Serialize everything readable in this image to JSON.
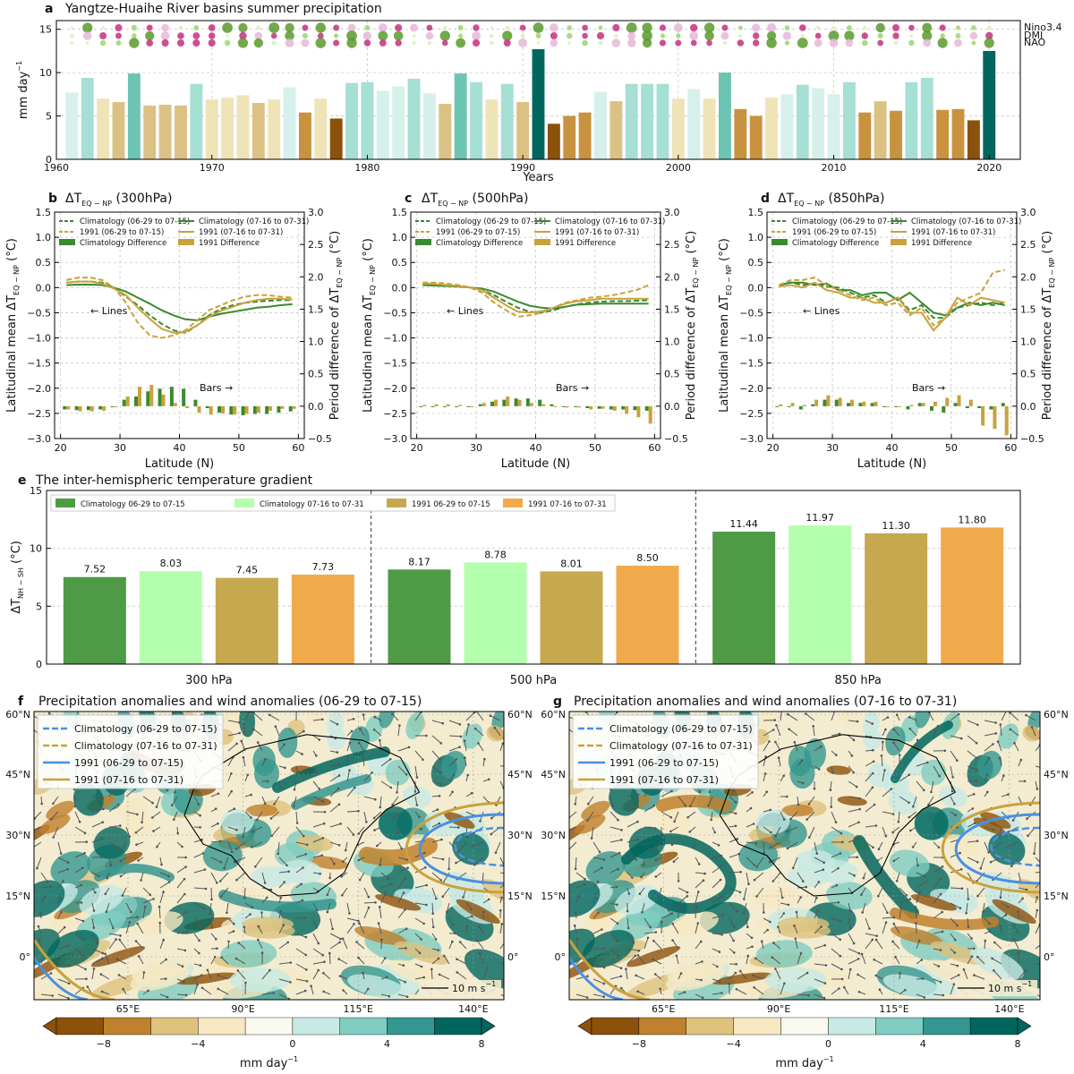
{
  "chart_data": [
    {
      "id": "a",
      "panel_label": "a",
      "type": "bar",
      "title": "Yangtze-Huaihe River basins summer precipitation",
      "xlabel": "Years",
      "ylabel": "mm day",
      "ylabel_sup": "−1",
      "xticks": [
        "1960",
        "1970",
        "1980",
        "1990",
        "2000",
        "2010",
        "2020"
      ],
      "yticks": [
        "0",
        "5",
        "10",
        "15"
      ],
      "xlim": [
        1960,
        2022
      ],
      "ylim": [
        0,
        16
      ],
      "years": [
        1961,
        1962,
        1963,
        1964,
        1965,
        1966,
        1967,
        1968,
        1969,
        1970,
        1971,
        1972,
        1973,
        1974,
        1975,
        1976,
        1977,
        1978,
        1979,
        1980,
        1981,
        1982,
        1983,
        1984,
        1985,
        1986,
        1987,
        1988,
        1989,
        1990,
        1991,
        1992,
        1993,
        1994,
        1995,
        1996,
        1997,
        1998,
        1999,
        2000,
        2001,
        2002,
        2003,
        2004,
        2005,
        2006,
        2007,
        2008,
        2009,
        2010,
        2011,
        2012,
        2013,
        2014,
        2015,
        2016,
        2017,
        2018,
        2019,
        2020
      ],
      "values": [
        7.7,
        9.4,
        7.0,
        6.6,
        9.9,
        6.2,
        6.3,
        6.2,
        8.7,
        6.9,
        7.1,
        7.4,
        6.5,
        6.9,
        8.3,
        5.4,
        7.0,
        4.7,
        8.8,
        8.9,
        7.9,
        8.4,
        9.3,
        7.6,
        6.4,
        9.9,
        8.9,
        6.9,
        8.7,
        6.6,
        12.7,
        4.1,
        5.0,
        5.4,
        7.8,
        6.7,
        8.7,
        8.7,
        8.7,
        7.0,
        8.1,
        7.0,
        10.0,
        5.8,
        5.0,
        7.1,
        7.5,
        8.6,
        8.2,
        7.5,
        8.9,
        5.4,
        6.7,
        5.6,
        8.9,
        9.4,
        5.7,
        5.8,
        4.5,
        12.5
      ],
      "index_rows": [
        "Nino3.4",
        "DMI",
        "NAO"
      ]
    },
    {
      "id": "b",
      "panel_label": "b",
      "type": "line",
      "title": "ΔT",
      "title_sub": "EQ − NP",
      "title_suffix": " (300hPa)",
      "xlabel": "Latitude (N)",
      "ylabel_left": "Latitudinal mean ΔT",
      "ylabel_left_sub": "EQ − NP",
      "ylabel_left_unit": " (°C)",
      "ylabel_right": "Period difference of ΔT",
      "ylabel_right_sub": "EQ − NP",
      "ylabel_right_unit": " (°C)",
      "xticks": [
        "20",
        "30",
        "40",
        "50",
        "60"
      ],
      "yticks_left": [
        "−3.0",
        "−2.5",
        "−2.0",
        "−1.5",
        "−1.0",
        "−0.5",
        "0.0",
        "0.5",
        "1.0",
        "1.5"
      ],
      "yticks_right": [
        "−0.5",
        "0.0",
        "0.5",
        "1.0",
        "1.5",
        "2.0",
        "2.5",
        "3.0"
      ],
      "xlim": [
        19,
        61
      ],
      "ylim_left": [
        -3.0,
        1.5
      ],
      "ylim_right": [
        -0.5,
        3.0
      ],
      "annotations": [
        "← Lines",
        "Bars →"
      ],
      "latitudes": [
        21,
        23,
        25,
        27,
        29,
        31,
        33,
        35,
        37,
        39,
        41,
        43,
        45,
        47,
        49,
        51,
        53,
        55,
        57,
        59
      ],
      "series": [
        {
          "name": "Climatology (06-29 to 07-15)",
          "style": "dashed",
          "color": "#3a8a2e",
          "values": [
            0.1,
            0.12,
            0.12,
            0.1,
            0.0,
            -0.18,
            -0.35,
            -0.55,
            -0.72,
            -0.85,
            -0.9,
            -0.75,
            -0.55,
            -0.42,
            -0.35,
            -0.3,
            -0.28,
            -0.26,
            -0.25,
            -0.25
          ]
        },
        {
          "name": "Climatology (07-16 to 07-31)",
          "style": "solid",
          "color": "#3a8a2e",
          "values": [
            0.05,
            0.06,
            0.06,
            0.05,
            0.0,
            -0.08,
            -0.2,
            -0.32,
            -0.45,
            -0.55,
            -0.63,
            -0.65,
            -0.58,
            -0.52,
            -0.48,
            -0.44,
            -0.4,
            -0.38,
            -0.35,
            -0.33
          ]
        },
        {
          "name": "1991 (06-29 to 07-15)",
          "style": "dashed",
          "color": "#c9a23c",
          "values": [
            0.15,
            0.2,
            0.2,
            0.15,
            0.0,
            -0.3,
            -0.7,
            -0.95,
            -1.0,
            -0.95,
            -0.85,
            -0.65,
            -0.45,
            -0.35,
            -0.25,
            -0.18,
            -0.15,
            -0.15,
            -0.18,
            -0.2
          ]
        },
        {
          "name": "1991 (07-16 to 07-31)",
          "style": "solid",
          "color": "#c9a23c",
          "values": [
            0.1,
            0.12,
            0.12,
            0.08,
            -0.02,
            -0.15,
            -0.4,
            -0.62,
            -0.82,
            -0.9,
            -0.88,
            -0.75,
            -0.58,
            -0.46,
            -0.38,
            -0.3,
            -0.25,
            -0.22,
            -0.22,
            -0.24
          ]
        }
      ],
      "bars": [
        {
          "name": "Climatology Difference",
          "color": "#3a8a2e",
          "values": [
            -0.05,
            -0.06,
            -0.06,
            -0.05,
            0.0,
            0.1,
            0.15,
            0.23,
            0.27,
            0.3,
            0.27,
            0.1,
            -0.03,
            -0.1,
            -0.13,
            -0.14,
            -0.12,
            -0.12,
            -0.1,
            -0.08
          ]
        },
        {
          "name": "1991 Difference",
          "color": "#c9a23c",
          "values": [
            -0.05,
            -0.08,
            -0.08,
            -0.07,
            0.0,
            0.15,
            0.3,
            0.33,
            0.18,
            0.05,
            -0.03,
            -0.1,
            -0.13,
            -0.11,
            -0.13,
            -0.12,
            -0.1,
            -0.07,
            -0.04,
            -0.04
          ]
        }
      ]
    },
    {
      "id": "c",
      "panel_label": "c",
      "type": "line",
      "title": "ΔT",
      "title_sub": "EQ − NP",
      "title_suffix": " (500hPa)",
      "xlabel": "Latitude (N)",
      "ylabel_left": "Latitudinal mean ΔT",
      "ylabel_left_sub": "EQ − NP",
      "ylabel_left_unit": " (°C)",
      "ylabel_right": "Period difference of ΔT",
      "ylabel_right_sub": "EQ − NP",
      "ylabel_right_unit": " (°C)",
      "xticks": [
        "20",
        "30",
        "40",
        "50",
        "60"
      ],
      "yticks_left": [
        "−3.0",
        "−2.5",
        "−2.0",
        "−1.5",
        "−1.0",
        "−0.5",
        "0.0",
        "0.5",
        "1.0",
        "1.5"
      ],
      "yticks_right": [
        "−0.5",
        "0.0",
        "0.5",
        "1.0",
        "1.5",
        "2.0",
        "2.5",
        "3.0"
      ],
      "xlim": [
        19,
        61
      ],
      "ylim_left": [
        -3.0,
        1.5
      ],
      "ylim_right": [
        -0.5,
        3.0
      ],
      "annotations": [
        "← Lines",
        "Bars →"
      ],
      "latitudes": [
        21,
        23,
        25,
        27,
        29,
        31,
        33,
        35,
        37,
        39,
        41,
        43,
        45,
        47,
        49,
        51,
        53,
        55,
        57,
        59
      ],
      "series": [
        {
          "name": "Climatology (06-29 to 07-15)",
          "style": "dashed",
          "color": "#3a8a2e",
          "values": [
            0.05,
            0.05,
            0.04,
            0.03,
            0.0,
            -0.05,
            -0.15,
            -0.28,
            -0.4,
            -0.48,
            -0.5,
            -0.45,
            -0.38,
            -0.33,
            -0.3,
            -0.28,
            -0.27,
            -0.27,
            -0.26,
            -0.25
          ]
        },
        {
          "name": "Climatology (07-16 to 07-31)",
          "style": "solid",
          "color": "#3a8a2e",
          "values": [
            0.05,
            0.04,
            0.03,
            0.02,
            0.0,
            -0.02,
            -0.08,
            -0.18,
            -0.28,
            -0.36,
            -0.4,
            -0.42,
            -0.38,
            -0.34,
            -0.33,
            -0.32,
            -0.32,
            -0.32,
            -0.32,
            -0.32
          ]
        },
        {
          "name": "1991 (06-29 to 07-15)",
          "style": "dashed",
          "color": "#c9a23c",
          "values": [
            0.1,
            0.1,
            0.08,
            0.05,
            0.0,
            -0.1,
            -0.3,
            -0.45,
            -0.58,
            -0.55,
            -0.5,
            -0.4,
            -0.3,
            -0.25,
            -0.2,
            -0.18,
            -0.15,
            -0.1,
            -0.05,
            0.05
          ]
        },
        {
          "name": "1991 (07-16 to 07-31)",
          "style": "solid",
          "color": "#c9a23c",
          "values": [
            0.08,
            0.07,
            0.05,
            0.03,
            0.0,
            -0.05,
            -0.2,
            -0.35,
            -0.48,
            -0.5,
            -0.47,
            -0.4,
            -0.32,
            -0.27,
            -0.25,
            -0.22,
            -0.22,
            -0.22,
            -0.22,
            -0.22
          ]
        }
      ],
      "bars": [
        {
          "name": "Climatology Difference",
          "color": "#3a8a2e",
          "values": [
            0.0,
            -0.01,
            -0.01,
            -0.01,
            0.0,
            0.03,
            0.07,
            0.1,
            0.12,
            0.12,
            0.1,
            0.03,
            0.0,
            -0.01,
            -0.03,
            -0.04,
            -0.05,
            -0.05,
            -0.06,
            -0.07
          ]
        },
        {
          "name": "1991 Difference",
          "color": "#c9a23c",
          "values": [
            0.02,
            0.03,
            0.03,
            0.02,
            0.0,
            0.05,
            0.1,
            0.15,
            0.1,
            0.05,
            0.03,
            0.0,
            -0.02,
            -0.02,
            -0.05,
            -0.04,
            -0.07,
            -0.12,
            -0.17,
            -0.27
          ]
        }
      ]
    },
    {
      "id": "d",
      "panel_label": "d",
      "type": "line",
      "title": "ΔT",
      "title_sub": "EQ − NP",
      "title_suffix": " (850hPa)",
      "xlabel": "Latitude (N)",
      "ylabel_left": "Latitudinal mean ΔT",
      "ylabel_left_sub": "EQ − NP",
      "ylabel_left_unit": " (°C)",
      "ylabel_right": "Period difference of ΔT",
      "ylabel_right_sub": "EQ − NP",
      "ylabel_right_unit": " (°C)",
      "xticks": [
        "20",
        "30",
        "40",
        "50",
        "60"
      ],
      "yticks_left": [
        "−3.0",
        "−2.5",
        "−2.0",
        "−1.5",
        "−1.0",
        "−0.5",
        "0.0",
        "0.5",
        "1.0",
        "1.5"
      ],
      "yticks_right": [
        "−0.5",
        "0.0",
        "0.5",
        "1.0",
        "1.5",
        "2.0",
        "2.5",
        "3.0"
      ],
      "xlim": [
        19,
        61
      ],
      "ylim_left": [
        -3.0,
        1.5
      ],
      "ylim_right": [
        -0.5,
        3.0
      ],
      "annotations": [
        "← Lines",
        "Bars →"
      ],
      "latitudes": [
        21,
        23,
        25,
        27,
        29,
        31,
        33,
        35,
        37,
        39,
        41,
        43,
        45,
        47,
        49,
        51,
        53,
        55,
        57,
        59
      ],
      "series": [
        {
          "name": "Climatology (06-29 to 07-15)",
          "style": "dashed",
          "color": "#3a8a2e",
          "values": [
            0.05,
            0.1,
            0.05,
            0.08,
            0.02,
            0.0,
            -0.1,
            -0.2,
            -0.15,
            -0.3,
            -0.2,
            -0.45,
            -0.35,
            -0.6,
            -0.6,
            -0.4,
            -0.35,
            -0.3,
            -0.35,
            -0.3
          ]
        },
        {
          "name": "Climatology (07-16 to 07-31)",
          "style": "solid",
          "color": "#3a8a2e",
          "values": [
            0.05,
            0.1,
            0.1,
            0.05,
            0.08,
            -0.05,
            -0.05,
            -0.15,
            -0.1,
            -0.1,
            -0.25,
            -0.1,
            -0.3,
            -0.5,
            -0.55,
            -0.4,
            -0.3,
            -0.35,
            -0.3,
            -0.35
          ]
        },
        {
          "name": "1991 (06-29 to 07-15)",
          "style": "dashed",
          "color": "#c9a23c",
          "values": [
            0.05,
            0.15,
            0.15,
            0.2,
            0.05,
            -0.05,
            -0.15,
            -0.25,
            -0.2,
            -0.35,
            -0.3,
            -0.55,
            -0.4,
            -0.75,
            -0.6,
            -0.3,
            -0.2,
            -0.1,
            0.3,
            0.35
          ]
        },
        {
          "name": "1991 (07-16 to 07-31)",
          "style": "solid",
          "color": "#c9a23c",
          "values": [
            0.02,
            0.05,
            0.0,
            0.1,
            -0.05,
            -0.1,
            -0.2,
            -0.2,
            -0.3,
            -0.3,
            -0.2,
            -0.5,
            -0.5,
            -0.85,
            -0.6,
            -0.2,
            -0.35,
            -0.2,
            -0.25,
            -0.3
          ]
        }
      ],
      "bars": [
        {
          "name": "Climatology Difference",
          "color": "#3a8a2e",
          "values": [
            0.0,
            0.0,
            -0.05,
            0.03,
            0.1,
            0.1,
            0.05,
            0.05,
            0.05,
            0.0,
            0.0,
            -0.05,
            0.05,
            -0.07,
            -0.1,
            0.05,
            -0.03,
            -0.03,
            -0.05,
            0.05
          ]
        },
        {
          "name": "1991 Difference",
          "color": "#c9a23c",
          "values": [
            0.03,
            0.05,
            0.02,
            0.1,
            0.17,
            0.13,
            0.1,
            0.07,
            0.07,
            0.0,
            0.0,
            0.02,
            0.05,
            0.07,
            0.13,
            0.17,
            0.1,
            -0.3,
            -0.35,
            -0.45
          ]
        }
      ]
    },
    {
      "id": "e",
      "panel_label": "e",
      "type": "bar",
      "title": "The inter-hemispheric temperature gradient",
      "ylabel": "ΔT",
      "ylabel_sub": "NH − SH",
      "ylabel_unit": " (°C)",
      "yticks": [
        "0",
        "5",
        "10",
        "15"
      ],
      "ylim": [
        0,
        15
      ],
      "categories": [
        "300 hPa",
        "500 hPa",
        "850 hPa"
      ],
      "series": [
        {
          "name": "Climatology 06-29 to 07-15",
          "color": "#4e9a45",
          "values": [
            7.52,
            8.17,
            11.44
          ],
          "labels": [
            "7.52",
            "8.17",
            "11.44"
          ]
        },
        {
          "name": "Climatology 07-16 to 07-31",
          "color": "#b3ffad",
          "values": [
            8.03,
            8.78,
            11.97
          ],
          "labels": [
            "8.03",
            "8.78",
            "11.97"
          ]
        },
        {
          "name": "1991 06-29 to 07-15",
          "color": "#c6a84f",
          "values": [
            7.45,
            8.01,
            11.3
          ],
          "labels": [
            "7.45",
            "8.01",
            "11.30"
          ]
        },
        {
          "name": "1991 07-16 to 07-31",
          "color": "#f0aa4c",
          "values": [
            7.73,
            8.5,
            11.8
          ],
          "labels": [
            "7.73",
            "8.50",
            "11.80"
          ]
        }
      ]
    },
    {
      "id": "f",
      "panel_label": "f",
      "type": "heatmap",
      "title": "Precipitation anomalies and wind anomalies (06-29 to 07-15)",
      "lat_ticks": [
        "60°N",
        "45°N",
        "30°N",
        "15°N",
        "0°"
      ],
      "lon_ticks": [
        "65°E",
        "90°E",
        "115°E",
        "140°E"
      ],
      "legend": [
        "Climatology (06-29 to 07-15)",
        "Climatology (07-16 to 07-31)",
        "1991 (06-29 to 07-15)",
        "1991 (07-16 to 07-31)"
      ],
      "wind_key": "10 m s",
      "wind_key_sup": "−1",
      "colorbar_ticks": [
        "−8",
        "−4",
        "0",
        "4",
        "8"
      ],
      "colorbar_label": "mm day",
      "colorbar_label_sup": "−1"
    },
    {
      "id": "g",
      "panel_label": "g",
      "type": "heatmap",
      "title": "Precipitation anomalies and wind anomalies (07-16 to 07-31)",
      "lat_ticks": [
        "60°N",
        "45°N",
        "30°N",
        "15°N",
        "0°"
      ],
      "lon_ticks": [
        "65°E",
        "90°E",
        "115°E",
        "140°E"
      ],
      "legend": [
        "Climatology (06-29 to 07-15)",
        "Climatology (07-16 to 07-31)",
        "1991 (06-29 to 07-15)",
        "1991 (07-16 to 07-31)"
      ],
      "wind_key": "10 m s",
      "wind_key_sup": "−1",
      "colorbar_ticks": [
        "−8",
        "−4",
        "0",
        "4",
        "8"
      ],
      "colorbar_label": "mm day",
      "colorbar_label_sup": "−1"
    }
  ],
  "colors": {
    "brown_dark": "#8c510a",
    "brown_mid": "#bf812d",
    "tan": "#dfc27d",
    "beige": "#f6e8c3",
    "mint": "#c7eae5",
    "teal_light": "#80cdc1",
    "teal": "#35978f",
    "teal_dark": "#01665e",
    "clim_green": "#3a8a2e",
    "gold": "#c9a23c",
    "blue": "#4a90e2"
  }
}
